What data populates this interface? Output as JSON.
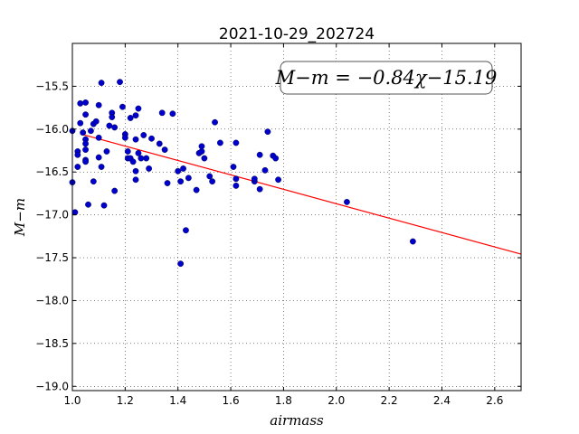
{
  "chart_data": {
    "type": "scatter",
    "title": "2021-10-29_202724",
    "xlabel": "airmass",
    "ylabel": "M−m",
    "xlim": [
      1.0,
      2.7
    ],
    "ylim": [
      -19.05,
      -15.0
    ],
    "y_inverted": false,
    "grid": true,
    "x_ticks": [
      1.0,
      1.2,
      1.4,
      1.6,
      1.8,
      2.0,
      2.2,
      2.4,
      2.6
    ],
    "x_tick_labels": [
      "1.0",
      "1.2",
      "1.4",
      "1.6",
      "1.8",
      "2.0",
      "2.2",
      "2.4",
      "2.6"
    ],
    "y_ticks": [
      -15.5,
      -16.0,
      -16.5,
      -17.0,
      -17.5,
      -18.0,
      -18.5,
      -19.0
    ],
    "y_tick_labels": [
      "−15.5",
      "−16.0",
      "−16.5",
      "−17.0",
      "−17.5",
      "−18.0",
      "−18.5",
      "−19.0"
    ],
    "annotation": "M−m = −0.84χ−15.19",
    "fit": {
      "slope": -0.84,
      "intercept": -15.19,
      "color": "#ff0000"
    },
    "point_color": "#0000cc",
    "points": [
      [
        1.0,
        -16.02
      ],
      [
        1.0,
        -16.62
      ],
      [
        1.01,
        -16.97
      ],
      [
        1.02,
        -16.44
      ],
      [
        1.02,
        -16.26
      ],
      [
        1.02,
        -16.3
      ],
      [
        1.03,
        -15.7
      ],
      [
        1.03,
        -15.93
      ],
      [
        1.04,
        -16.04
      ],
      [
        1.05,
        -15.69
      ],
      [
        1.05,
        -15.83
      ],
      [
        1.05,
        -16.12
      ],
      [
        1.05,
        -16.17
      ],
      [
        1.05,
        -16.24
      ],
      [
        1.05,
        -16.36
      ],
      [
        1.05,
        -16.38
      ],
      [
        1.06,
        -16.88
      ],
      [
        1.07,
        -16.02
      ],
      [
        1.08,
        -15.94
      ],
      [
        1.08,
        -16.61
      ],
      [
        1.09,
        -15.91
      ],
      [
        1.1,
        -15.72
      ],
      [
        1.1,
        -16.1
      ],
      [
        1.1,
        -16.33
      ],
      [
        1.11,
        -16.44
      ],
      [
        1.11,
        -15.46
      ],
      [
        1.12,
        -16.89
      ],
      [
        1.13,
        -16.26
      ],
      [
        1.14,
        -15.96
      ],
      [
        1.15,
        -15.81
      ],
      [
        1.15,
        -15.86
      ],
      [
        1.16,
        -15.98
      ],
      [
        1.16,
        -16.72
      ],
      [
        1.18,
        -15.45
      ],
      [
        1.19,
        -15.74
      ],
      [
        1.2,
        -16.06
      ],
      [
        1.2,
        -16.1
      ],
      [
        1.21,
        -16.26
      ],
      [
        1.21,
        -16.34
      ],
      [
        1.22,
        -15.87
      ],
      [
        1.22,
        -16.34
      ],
      [
        1.23,
        -16.38
      ],
      [
        1.24,
        -15.84
      ],
      [
        1.24,
        -16.12
      ],
      [
        1.24,
        -16.49
      ],
      [
        1.24,
        -16.59
      ],
      [
        1.25,
        -15.76
      ],
      [
        1.25,
        -16.28
      ],
      [
        1.26,
        -16.34
      ],
      [
        1.27,
        -16.07
      ],
      [
        1.28,
        -16.34
      ],
      [
        1.29,
        -16.46
      ],
      [
        1.3,
        -16.11
      ],
      [
        1.33,
        -16.17
      ],
      [
        1.34,
        -15.81
      ],
      [
        1.35,
        -16.24
      ],
      [
        1.36,
        -16.63
      ],
      [
        1.38,
        -15.82
      ],
      [
        1.4,
        -16.49
      ],
      [
        1.41,
        -16.61
      ],
      [
        1.41,
        -17.57
      ],
      [
        1.42,
        -16.46
      ],
      [
        1.43,
        -17.18
      ],
      [
        1.44,
        -16.57
      ],
      [
        1.47,
        -16.71
      ],
      [
        1.48,
        -16.28
      ],
      [
        1.49,
        -16.2
      ],
      [
        1.49,
        -16.26
      ],
      [
        1.5,
        -16.34
      ],
      [
        1.52,
        -16.55
      ],
      [
        1.53,
        -16.61
      ],
      [
        1.54,
        -15.92
      ],
      [
        1.56,
        -16.16
      ],
      [
        1.61,
        -16.44
      ],
      [
        1.62,
        -16.16
      ],
      [
        1.62,
        -16.58
      ],
      [
        1.62,
        -16.66
      ],
      [
        1.69,
        -16.61
      ],
      [
        1.69,
        -16.58
      ],
      [
        1.71,
        -16.3
      ],
      [
        1.71,
        -16.7
      ],
      [
        1.73,
        -16.48
      ],
      [
        1.74,
        -16.03
      ],
      [
        1.76,
        -16.31
      ],
      [
        1.77,
        -16.34
      ],
      [
        1.78,
        -16.59
      ],
      [
        2.04,
        -16.85
      ],
      [
        2.29,
        -17.31
      ]
    ]
  }
}
